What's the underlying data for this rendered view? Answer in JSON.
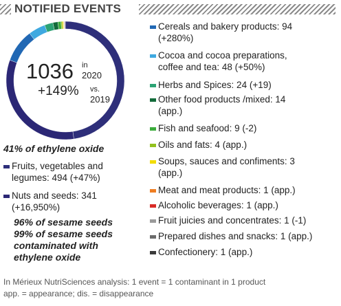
{
  "section_title": "NOTIFIED EVENTS",
  "center": {
    "total": "1036",
    "in_label": "in",
    "year": "2020",
    "change": "+149%",
    "vs_label": "vs.",
    "prev_year": "2019"
  },
  "ethylene_heading": "41% of ethylene oxide",
  "left_items": [
    {
      "lines": [
        "Fruits, vegetables and",
        "legumes: 494 (+47%)"
      ],
      "color": "#2e2f7a"
    },
    {
      "lines": [
        "Nuts and seeds: 341",
        "(+16,950%)"
      ],
      "color": "#2b2775"
    }
  ],
  "left_notes": [
    "96% of sesame seeds",
    "99% of sesame seeds",
    "contaminated with",
    "ethylene oxide"
  ],
  "right_items": [
    {
      "lines": [
        "Cereals and bakery products: 94",
        "(+280%)"
      ],
      "color": "#2168b4"
    },
    {
      "lines": [
        "Cocoa and cocoa preparations,",
        "coffee and tea: 48 (+50%)"
      ],
      "color": "#3fa9e0"
    },
    {
      "lines": [
        "Herbs and Spices: 24 (+19)"
      ],
      "color": "#2ca374"
    },
    {
      "lines": [
        "Other food products /mixed: 14",
        "(app.)"
      ],
      "color": "#136b3a"
    },
    {
      "lines": [
        "Fish and seafood: 9 (-2)"
      ],
      "color": "#3cac3c"
    },
    {
      "lines": [
        "Oils and fats: 4 (app.)"
      ],
      "color": "#93c11f"
    },
    {
      "lines": [
        "Soups, sauces and confiments: 3",
        "(app.)"
      ],
      "color": "#f2dc00"
    },
    {
      "lines": [
        "Meat and meat products: 1 (app.)"
      ],
      "color": "#ef7d22"
    },
    {
      "lines": [
        "Alcoholic beverages: 1 (app.)"
      ],
      "color": "#d92b27"
    },
    {
      "lines": [
        "Fruit juicies and concentrates: 1 (-1)"
      ],
      "color": "#9a9a9a"
    },
    {
      "lines": [
        "Prepared dishes and snacks: 1 (app.)"
      ],
      "color": "#6b6b6b"
    },
    {
      "lines": [
        "Confectionery: 1 (app.)"
      ],
      "color": "#3a3a3a"
    }
  ],
  "footnote": [
    "In Mérieux NutriSciences analysis: 1 event = 1 contaminant in 1 product",
    "app. = appearance; dis. = disappearance"
  ],
  "chart_data": {
    "type": "pie",
    "style": "donut",
    "total": 1036,
    "categories": [
      "Fruits, vegetables and legumes",
      "Nuts and seeds",
      "Cereals and bakery products",
      "Cocoa and cocoa preparations, coffee and tea",
      "Herbs and Spices",
      "Other food products /mixed",
      "Fish and seafood",
      "Oils and fats",
      "Soups, sauces and confiments",
      "Meat and meat products",
      "Alcoholic beverages",
      "Fruit juicies and concentrates",
      "Prepared dishes and snacks",
      "Confectionery"
    ],
    "values": [
      494,
      341,
      94,
      48,
      24,
      14,
      9,
      4,
      3,
      1,
      1,
      1,
      1,
      1
    ],
    "colors": [
      "#2e2f7a",
      "#2b2775",
      "#2168b4",
      "#3fa9e0",
      "#2ca374",
      "#136b3a",
      "#3cac3c",
      "#93c11f",
      "#f2dc00",
      "#ef7d22",
      "#d92b27",
      "#9a9a9a",
      "#6b6b6b",
      "#3a3a3a"
    ]
  }
}
